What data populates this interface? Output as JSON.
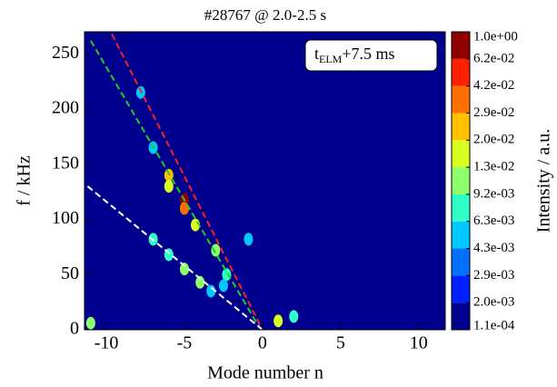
{
  "chart_data": {
    "type": "heatmap",
    "title": "#28767 @ 2.0-2.5 s",
    "x_label": "Mode number n",
    "y_label": "f / kHz",
    "xlim": [
      -11.4,
      11.7
    ],
    "ylim": [
      0,
      270
    ],
    "xticks": [
      -10,
      -5,
      0,
      5,
      10
    ],
    "yticks": [
      0,
      50,
      100,
      150,
      200,
      250
    ],
    "background": "#00008f",
    "annotation": {
      "base": "t",
      "sub": "ELM",
      "rest": "+7.5 ms"
    },
    "colorbar": {
      "label": "Intensity / a.u.",
      "levels": [
        {
          "value": 0.00011,
          "label": "1.1e-04"
        },
        {
          "value": 0.002,
          "label": "2.0e-03"
        },
        {
          "value": 0.0029,
          "label": "2.9e-03"
        },
        {
          "value": 0.0043,
          "label": "4.3e-03"
        },
        {
          "value": 0.0063,
          "label": "6.3e-03"
        },
        {
          "value": 0.0092,
          "label": "9.2e-03"
        },
        {
          "value": 0.013,
          "label": "1.3e-02"
        },
        {
          "value": 0.02,
          "label": "2.0e-02"
        },
        {
          "value": 0.029,
          "label": "2.9e-02"
        },
        {
          "value": 0.042,
          "label": "4.2e-02"
        },
        {
          "value": 0.062,
          "label": "6.2e-02"
        },
        {
          "value": 1,
          "label": "1.0e+00"
        }
      ],
      "colors": [
        "#00008f",
        "#0020ff",
        "#0070ff",
        "#00c8ff",
        "#30ffc8",
        "#8cff6a",
        "#d8ff20",
        "#ffc000",
        "#ff7000",
        "#ff2000",
        "#8f0000"
      ]
    },
    "points": {
      "x": [
        -6,
        -6,
        -5,
        -5,
        -4.3,
        -3,
        -2.3,
        -5,
        -4,
        -6,
        -7,
        -0.9,
        1,
        2,
        -11,
        -7.8,
        -7,
        -3.3,
        -2.5
      ],
      "y": [
        140,
        130,
        118,
        110,
        95,
        72,
        50,
        55,
        43,
        68,
        82,
        82,
        8,
        12,
        6,
        215,
        165,
        35,
        40
      ],
      "values": [
        0.02,
        0.013,
        0.062,
        0.029,
        0.013,
        0.0092,
        0.0063,
        0.0092,
        0.0092,
        0.0063,
        0.0063,
        0.0043,
        0.013,
        0.0063,
        0.0092,
        0.0043,
        0.0043,
        0.0043,
        0.0043
      ]
    },
    "lines": [
      {
        "color": "#ff2020",
        "x": [
          -9.65,
          0
        ],
        "y": [
          268,
          0
        ]
      },
      {
        "color": "#20d020",
        "x": [
          -11,
          -0.2
        ],
        "y": [
          262,
          2
        ]
      },
      {
        "color": "#ffffff",
        "x": [
          -11.2,
          0
        ],
        "y": [
          130,
          0
        ]
      }
    ]
  }
}
